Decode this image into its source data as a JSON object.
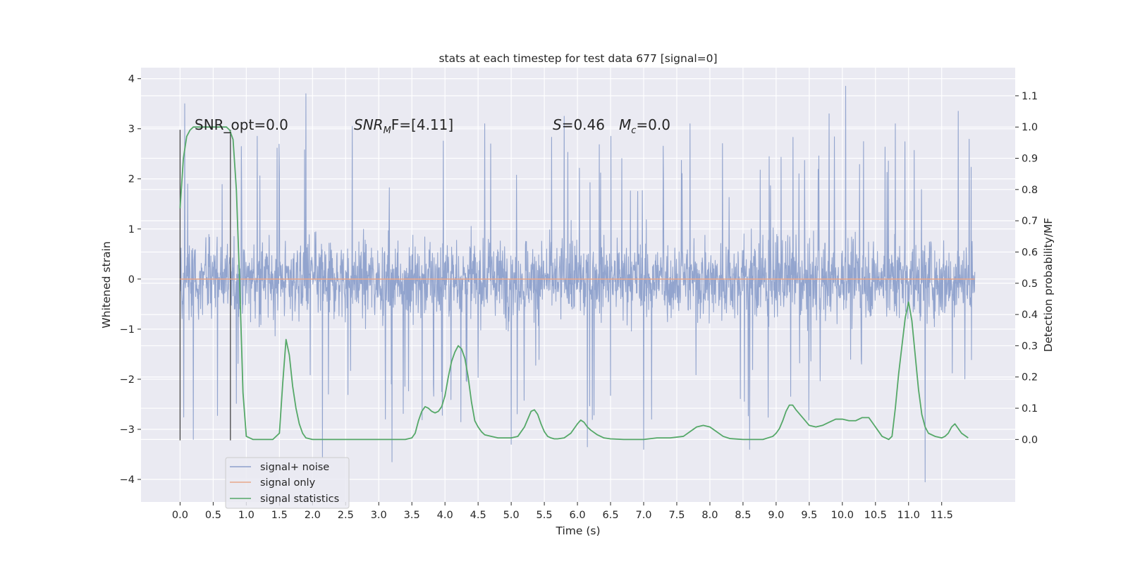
{
  "chart_data": {
    "type": "line",
    "title": "stats at each timestep for test data 677 [signal=0]",
    "xlabel": "Time (s)",
    "ylabel_left": "Whitened strain",
    "ylabel_right": "Detection probability/MF",
    "xlim": [
      -0.59,
      12.61
    ],
    "ylim_left": [
      -4.45,
      4.22
    ],
    "ylim_right": [
      -0.2,
      1.19
    ],
    "x_ticks": [
      0.0,
      0.5,
      1.0,
      1.5,
      2.0,
      2.5,
      3.0,
      3.5,
      4.0,
      4.5,
      5.0,
      5.5,
      6.0,
      6.5,
      7.0,
      7.5,
      8.0,
      8.5,
      9.0,
      9.5,
      10.0,
      10.5,
      11.0,
      11.5
    ],
    "x_tick_labels": [
      "0.0",
      "0.5",
      "1.0",
      "1.5",
      "2.0",
      "2.5",
      "3.0",
      "3.5",
      "4.0",
      "4.5",
      "5.0",
      "5.5",
      "6.0",
      "6.5",
      "7.0",
      "7.5",
      "8.0",
      "8.5",
      "9.0",
      "9.5",
      "10.0",
      "10.5",
      "11.0",
      "11.5"
    ],
    "y_left_ticks": [
      -4,
      -3,
      -2,
      -1,
      0,
      1,
      2,
      3,
      4
    ],
    "y_left_tick_labels": [
      "−4",
      "−3",
      "−2",
      "−1",
      "0",
      "1",
      "2",
      "3",
      "4"
    ],
    "y_right_ticks": [
      0.0,
      0.1,
      0.2,
      0.3,
      0.4,
      0.5,
      0.6,
      0.7,
      0.8,
      0.9,
      1.0,
      1.1
    ],
    "y_right_tick_labels": [
      "0.0",
      "0.1",
      "0.2",
      "0.3",
      "0.4",
      "0.5",
      "0.6",
      "0.7",
      "0.8",
      "0.9",
      "1.0",
      "1.1"
    ],
    "grid": true,
    "legend_position": "lower-left",
    "annotations": {
      "snr_opt": "SNR_opt=0.0",
      "snr_mf_base": "SNR",
      "snr_mf_sub": "M",
      "snr_mf_rest": "F=[4.11]",
      "s_base": "S",
      "s_rest": "=0.46",
      "mc_base": "M",
      "mc_sub": "c",
      "mc_rest": "=0.0"
    },
    "series": [
      {
        "name": "signal+ noise",
        "axis": "left",
        "color": "#8da0cb",
        "x_range": [
          0.0,
          12.0
        ],
        "typical_envelope": [
          -1.5,
          1.5
        ],
        "peak_values": [
          [
            0.07,
            3.5
          ],
          [
            0.2,
            -3.2
          ],
          [
            1.9,
            3.7
          ],
          [
            2.15,
            -3.55
          ],
          [
            2.6,
            3.05
          ],
          [
            3.2,
            -3.65
          ],
          [
            4.6,
            3.1
          ],
          [
            5.0,
            -3.3
          ],
          [
            5.8,
            3.25
          ],
          [
            6.15,
            -3.35
          ],
          [
            7.0,
            -3.4
          ],
          [
            7.7,
            3.1
          ],
          [
            8.6,
            -3.4
          ],
          [
            9.8,
            3.3
          ],
          [
            10.05,
            3.85
          ],
          [
            10.8,
            3.1
          ],
          [
            11.25,
            -4.05
          ],
          [
            11.75,
            3.35
          ]
        ]
      },
      {
        "name": "signal only",
        "axis": "left",
        "color": "#e8a78a",
        "x": [
          0.0,
          12.0
        ],
        "values": [
          0.0,
          0.0
        ]
      },
      {
        "name": "signal statistics",
        "axis": "right",
        "color": "#55a868",
        "x": [
          0.0,
          0.05,
          0.1,
          0.15,
          0.2,
          0.3,
          0.4,
          0.5,
          0.6,
          0.7,
          0.75,
          0.8,
          0.85,
          0.9,
          0.95,
          1.0,
          1.1,
          1.2,
          1.3,
          1.4,
          1.5,
          1.55,
          1.6,
          1.65,
          1.7,
          1.75,
          1.8,
          1.85,
          1.9,
          2.0,
          2.2,
          2.5,
          3.0,
          3.4,
          3.5,
          3.55,
          3.6,
          3.65,
          3.7,
          3.75,
          3.8,
          3.85,
          3.9,
          3.95,
          4.0,
          4.05,
          4.1,
          4.15,
          4.2,
          4.25,
          4.3,
          4.35,
          4.4,
          4.45,
          4.5,
          4.55,
          4.6,
          4.7,
          4.8,
          5.0,
          5.1,
          5.2,
          5.3,
          5.35,
          5.4,
          5.45,
          5.5,
          5.55,
          5.6,
          5.65,
          5.7,
          5.8,
          5.9,
          6.0,
          6.05,
          6.1,
          6.15,
          6.2,
          6.3,
          6.4,
          6.5,
          6.7,
          7.0,
          7.2,
          7.4,
          7.6,
          7.7,
          7.8,
          7.9,
          8.0,
          8.1,
          8.2,
          8.3,
          8.5,
          8.8,
          8.95,
          9.0,
          9.05,
          9.1,
          9.15,
          9.2,
          9.25,
          9.3,
          9.4,
          9.5,
          9.6,
          9.7,
          9.8,
          9.9,
          10.0,
          10.1,
          10.2,
          10.3,
          10.4,
          10.5,
          10.6,
          10.7,
          10.75,
          10.8,
          10.85,
          10.9,
          10.95,
          11.0,
          11.05,
          11.1,
          11.15,
          11.2,
          11.25,
          11.3,
          11.4,
          11.5,
          11.55,
          11.6,
          11.65,
          11.7,
          11.8,
          11.9
        ],
        "values": [
          0.74,
          0.9,
          0.97,
          0.99,
          1.0,
          1.0,
          1.0,
          1.0,
          1.0,
          1.0,
          0.99,
          0.96,
          0.8,
          0.5,
          0.15,
          0.01,
          0.0,
          0.0,
          0.0,
          0.0,
          0.02,
          0.18,
          0.32,
          0.27,
          0.17,
          0.1,
          0.05,
          0.02,
          0.005,
          0.0,
          0.0,
          0.0,
          0.0,
          0.0,
          0.005,
          0.02,
          0.06,
          0.09,
          0.105,
          0.1,
          0.09,
          0.085,
          0.09,
          0.105,
          0.14,
          0.2,
          0.25,
          0.28,
          0.3,
          0.29,
          0.26,
          0.2,
          0.12,
          0.06,
          0.04,
          0.025,
          0.015,
          0.01,
          0.005,
          0.005,
          0.01,
          0.04,
          0.09,
          0.095,
          0.08,
          0.05,
          0.025,
          0.01,
          0.005,
          0.002,
          0.002,
          0.005,
          0.02,
          0.05,
          0.062,
          0.055,
          0.04,
          0.03,
          0.015,
          0.005,
          0.002,
          0.0,
          0.0,
          0.005,
          0.005,
          0.01,
          0.025,
          0.04,
          0.045,
          0.04,
          0.025,
          0.01,
          0.003,
          0.0,
          0.0,
          0.01,
          0.02,
          0.035,
          0.06,
          0.09,
          0.11,
          0.11,
          0.095,
          0.07,
          0.045,
          0.04,
          0.045,
          0.055,
          0.065,
          0.065,
          0.06,
          0.06,
          0.07,
          0.07,
          0.04,
          0.01,
          0.0,
          0.01,
          0.1,
          0.21,
          0.3,
          0.39,
          0.44,
          0.38,
          0.27,
          0.16,
          0.08,
          0.04,
          0.02,
          0.01,
          0.005,
          0.01,
          0.02,
          0.04,
          0.05,
          0.02,
          0.005
        ]
      }
    ]
  }
}
